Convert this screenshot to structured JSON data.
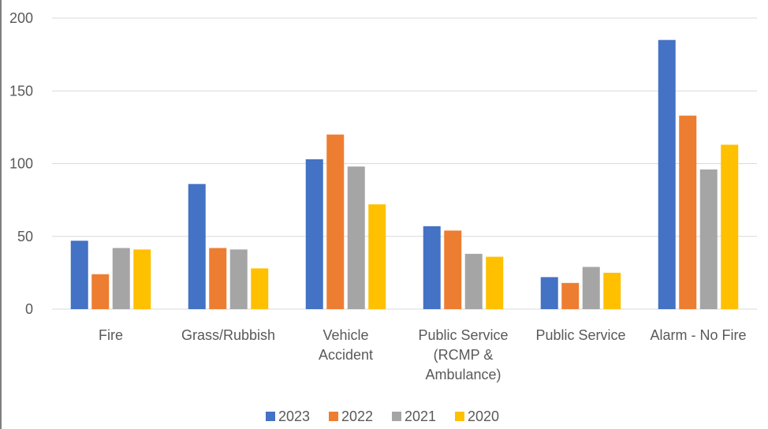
{
  "chart_data": {
    "type": "bar",
    "categories": [
      [
        "Fire"
      ],
      [
        "Grass/Rubbish"
      ],
      [
        "Vehicle",
        "Accident"
      ],
      [
        "Public Service",
        "(RCMP &",
        "Ambulance)"
      ],
      [
        "Public Service"
      ],
      [
        "Alarm - No Fire"
      ]
    ],
    "series": [
      {
        "name": "2023",
        "color": "#4472C4",
        "values": [
          47,
          86,
          103,
          57,
          22,
          185
        ]
      },
      {
        "name": "2022",
        "color": "#ED7D31",
        "values": [
          24,
          42,
          120,
          54,
          18,
          133
        ]
      },
      {
        "name": "2021",
        "color": "#A5A5A5",
        "values": [
          42,
          41,
          98,
          38,
          29,
          96
        ]
      },
      {
        "name": "2020",
        "color": "#FFC000",
        "values": [
          41,
          28,
          72,
          36,
          25,
          113
        ]
      }
    ],
    "ylim": [
      0,
      200
    ],
    "yticks": [
      0,
      50,
      100,
      150,
      200
    ],
    "grid": true,
    "legend_position": "bottom"
  }
}
